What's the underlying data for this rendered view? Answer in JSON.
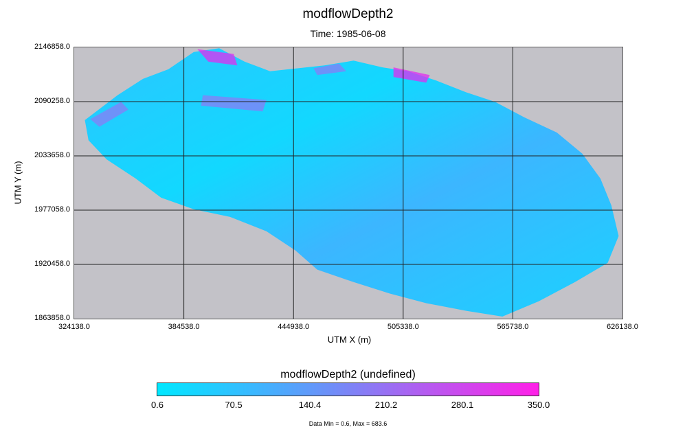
{
  "chart_data": {
    "type": "heatmap",
    "title": "modflowDepth2",
    "subtitle": "Time: 1985-06-08",
    "xlabel": "UTM X (m)",
    "ylabel": "UTM Y (m)",
    "xlim": [
      324138.0,
      626138.0
    ],
    "ylim": [
      1863858.0,
      2146858.0
    ],
    "x_ticks": [
      "324138.0",
      "384538.0",
      "444938.0",
      "505338.0",
      "565738.0",
      "626138.0"
    ],
    "y_ticks": [
      "2146858.0",
      "2090258.0",
      "2033658.0",
      "1977058.0",
      "1920458.0",
      "1863858.0"
    ],
    "grid": true,
    "background_color": "#c3c2c8",
    "colorbar": {
      "title": "modflowDepth2 (undefined)",
      "ticks": [
        "0.6",
        "70.5",
        "140.4",
        "210.2",
        "280.1",
        "350.0"
      ],
      "min": 0.6,
      "max": 350.0,
      "colors": [
        "#00e8ff",
        "#3ab8ff",
        "#6d8ff8",
        "#b45cf0",
        "#ff20e8"
      ],
      "note": "Data Min = 0.6, Max = 683.6"
    },
    "domain_outline": [
      [
        330000,
        2071000
      ],
      [
        348000,
        2097000
      ],
      [
        362000,
        2114000
      ],
      [
        376000,
        2124000
      ],
      [
        390000,
        2142000
      ],
      [
        404000,
        2146000
      ],
      [
        418000,
        2132000
      ],
      [
        432000,
        2122000
      ],
      [
        447000,
        2125000
      ],
      [
        462000,
        2128000
      ],
      [
        478000,
        2133000
      ],
      [
        494000,
        2126000
      ],
      [
        508000,
        2122000
      ],
      [
        524000,
        2112000
      ],
      [
        540000,
        2100000
      ],
      [
        556000,
        2090000
      ],
      [
        572000,
        2074000
      ],
      [
        590000,
        2058000
      ],
      [
        604000,
        2036000
      ],
      [
        614000,
        2010000
      ],
      [
        620000,
        1982000
      ],
      [
        624000,
        1950000
      ],
      [
        618000,
        1922000
      ],
      [
        600000,
        1902000
      ],
      [
        580000,
        1882000
      ],
      [
        560000,
        1866000
      ],
      [
        540000,
        1872000
      ],
      [
        518000,
        1880000
      ],
      [
        498000,
        1890000
      ],
      [
        478000,
        1902000
      ],
      [
        458000,
        1915000
      ],
      [
        446000,
        1935000
      ],
      [
        430000,
        1955000
      ],
      [
        410000,
        1970000
      ],
      [
        390000,
        1978000
      ],
      [
        372000,
        1990000
      ],
      [
        358000,
        2010000
      ],
      [
        342000,
        2030000
      ],
      [
        332000,
        2050000
      ]
    ],
    "high_depth_zones": [
      [
        [
          392000,
          2145000
        ],
        [
          412000,
          2140000
        ],
        [
          414000,
          2128000
        ],
        [
          398000,
          2132000
        ]
      ],
      [
        [
          500000,
          2126000
        ],
        [
          520000,
          2118000
        ],
        [
          518000,
          2110000
        ],
        [
          500000,
          2116000
        ]
      ],
      [
        [
          456000,
          2125000
        ],
        [
          470000,
          2130000
        ],
        [
          474000,
          2122000
        ],
        [
          458000,
          2118000
        ]
      ],
      [
        [
          333000,
          2072000
        ],
        [
          350000,
          2090000
        ],
        [
          354000,
          2082000
        ],
        [
          338000,
          2064000
        ]
      ],
      [
        [
          395000,
          2097000
        ],
        [
          430000,
          2092000
        ],
        [
          428000,
          2080000
        ],
        [
          394000,
          2086000
        ]
      ]
    ]
  }
}
